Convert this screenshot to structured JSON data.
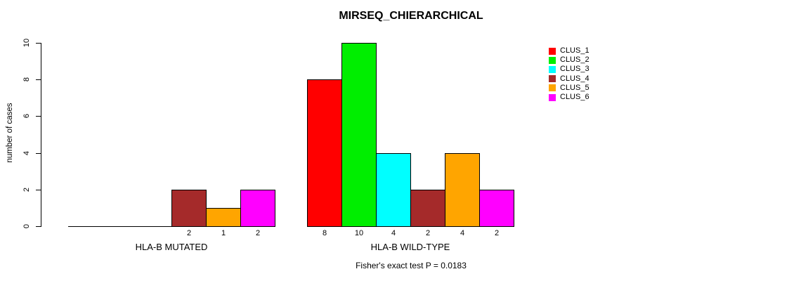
{
  "chart_data": {
    "type": "bar",
    "title": "MIRSEQ_CHIERARCHICAL",
    "ylabel": "number of cases",
    "ylim": [
      0,
      10
    ],
    "yticks": [
      0,
      2,
      4,
      6,
      8,
      10
    ],
    "categories": [
      "HLA-B MUTATED",
      "HLA-B WILD-TYPE"
    ],
    "series": [
      {
        "name": "CLUS_1",
        "color": "#FF0000",
        "values": [
          0,
          8
        ]
      },
      {
        "name": "CLUS_2",
        "color": "#00EE00",
        "values": [
          0,
          10
        ]
      },
      {
        "name": "CLUS_3",
        "color": "#00FFFF",
        "values": [
          0,
          4
        ]
      },
      {
        "name": "CLUS_4",
        "color": "#A52A2A",
        "values": [
          2,
          2
        ]
      },
      {
        "name": "CLUS_5",
        "color": "#FFA500",
        "values": [
          1,
          4
        ]
      },
      {
        "name": "CLUS_6",
        "color": "#FF00FF",
        "values": [
          2,
          2
        ]
      }
    ],
    "bar_value_labels": {
      "HLA-B MUTATED": [
        "",
        "",
        "",
        "2",
        "1",
        "2"
      ],
      "HLA-B WILD-TYPE": [
        "8",
        "10",
        "4",
        "2",
        "4",
        "2"
      ]
    },
    "legend_position": "right",
    "grid": false,
    "footnote": "Fisher's exact test P = 0.0183"
  }
}
